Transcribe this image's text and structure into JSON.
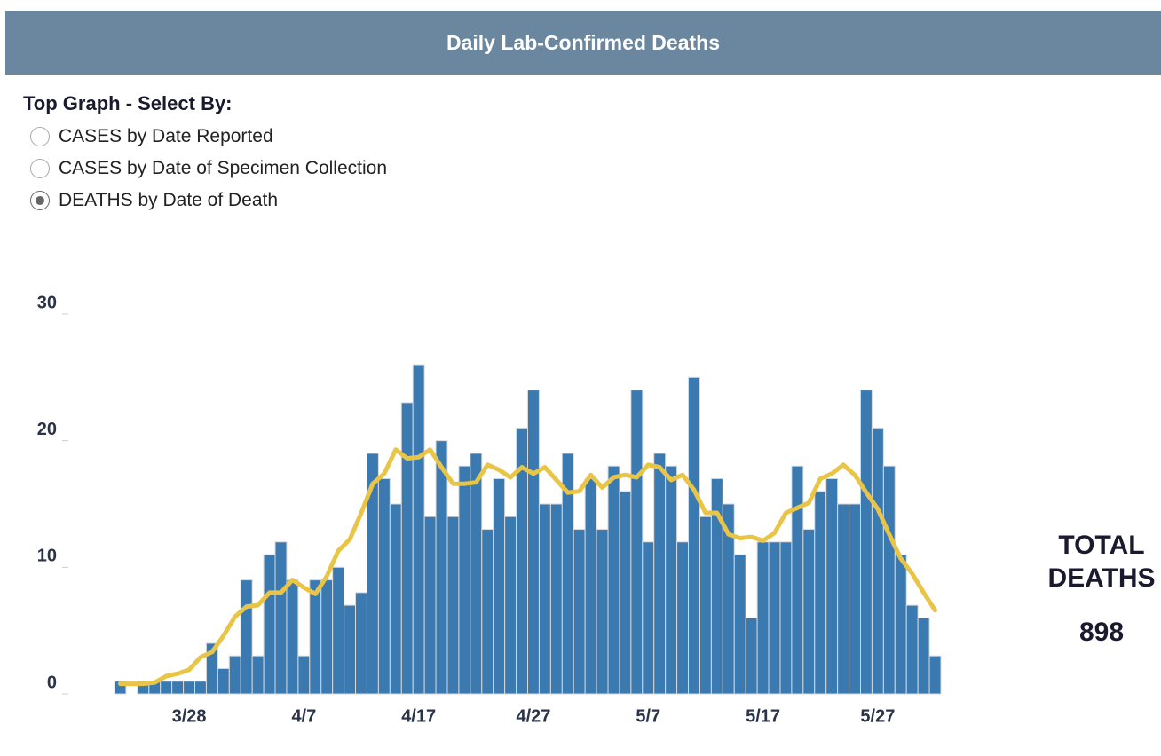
{
  "header": {
    "title": "Daily Lab-Confirmed Deaths"
  },
  "controls": {
    "label": "Top Graph - Select By:",
    "options": [
      "CASES by Date Reported",
      "CASES by Date of Specimen Collection",
      "DEATHS by Date of Death"
    ],
    "selected": 2
  },
  "total": {
    "label": "TOTAL DEATHS",
    "value": 898
  },
  "chart_data": {
    "type": "bar",
    "categories": [
      null,
      null,
      null,
      null,
      null,
      null,
      "3/28",
      null,
      null,
      null,
      null,
      null,
      null,
      null,
      null,
      null,
      "4/7",
      null,
      null,
      null,
      null,
      null,
      null,
      null,
      null,
      null,
      "4/17",
      null,
      null,
      null,
      null,
      null,
      null,
      null,
      null,
      null,
      "4/27",
      null,
      null,
      null,
      null,
      null,
      null,
      null,
      null,
      null,
      "5/7",
      null,
      null,
      null,
      null,
      null,
      null,
      null,
      null,
      null,
      "5/17",
      null,
      null,
      null,
      null,
      null,
      null,
      null,
      null,
      null,
      "5/27",
      null,
      null,
      null,
      null,
      null
    ],
    "series": [
      {
        "type": "bar",
        "color": "#3b79b1",
        "values": [
          1,
          0,
          1,
          1,
          1,
          1,
          1,
          1,
          4,
          2,
          3,
          9,
          3,
          11,
          12,
          9,
          3,
          9,
          9,
          10,
          7,
          8,
          19,
          17,
          15,
          23,
          26,
          14,
          20,
          14,
          18,
          19,
          13,
          17,
          14,
          21,
          24,
          15,
          15,
          19,
          13,
          17,
          13,
          18,
          16,
          24,
          12,
          19,
          18,
          12,
          25,
          14,
          17,
          15,
          11,
          6,
          12,
          12,
          12,
          18,
          13,
          16,
          17,
          15,
          15,
          24,
          21,
          18,
          11,
          7,
          6,
          3
        ]
      },
      {
        "type": "line",
        "color": "#e8c547",
        "values": [
          0.8,
          0.8,
          0.8,
          0.9,
          1.4,
          1.6,
          1.9,
          2.9,
          3.3,
          4.6,
          6.1,
          6.9,
          7.0,
          8.0,
          8.0,
          9.0,
          8.4,
          7.9,
          9.3,
          11.3,
          12.2,
          14.3,
          16.6,
          17.4,
          19.3,
          18.6,
          18.7,
          19.3,
          17.9,
          16.6,
          16.6,
          16.7,
          18.1,
          17.7,
          17.1,
          17.9,
          17.4,
          17.9,
          16.9,
          15.9,
          16.0,
          17.3,
          16.3,
          17.1,
          17.3,
          17.1,
          18.1,
          17.9,
          16.9,
          17.3,
          16.1,
          14.3,
          14.3,
          12.6,
          12.3,
          12.4,
          12.1,
          12.7,
          14.3,
          14.7,
          15.1,
          17.0,
          17.4,
          18.1,
          17.3,
          15.9,
          14.6,
          12.6,
          10.7,
          9.5,
          8.0,
          6.6
        ]
      }
    ],
    "ylim": [
      0,
      30
    ],
    "yticks": [
      0,
      10,
      20,
      30
    ]
  }
}
